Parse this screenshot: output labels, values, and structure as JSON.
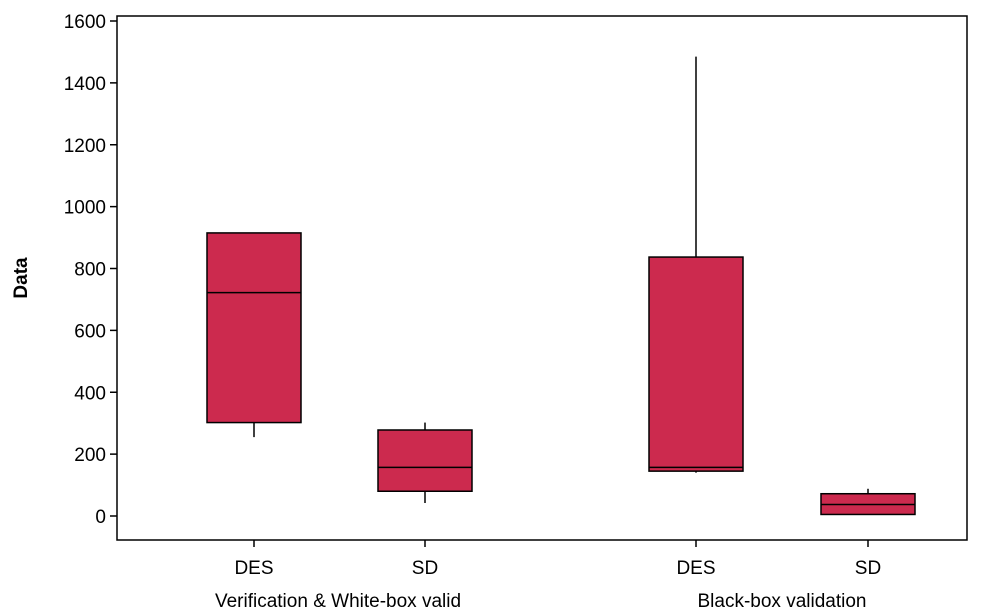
{
  "chart_data": {
    "type": "boxplot",
    "title": "",
    "xlabel": "",
    "ylabel": "Data",
    "ylim": [
      -80,
      1600
    ],
    "yticks": [
      0,
      200,
      400,
      600,
      800,
      1000,
      1200,
      1400,
      1600
    ],
    "grid": false,
    "box_color": "#cc2a4e",
    "stroke_color": "#000000",
    "groups": [
      {
        "label": "Verification & White-box valid",
        "boxes": [
          {
            "category": "DES",
            "min": 255,
            "q1": 302,
            "median": 722,
            "q3": 915,
            "max": 915
          },
          {
            "category": "SD",
            "min": 42,
            "q1": 80,
            "median": 157,
            "q3": 278,
            "max": 302
          }
        ]
      },
      {
        "label": "Black-box validation",
        "boxes": [
          {
            "category": "DES",
            "min": 140,
            "q1": 145,
            "median": 157,
            "q3": 837,
            "max": 1485
          },
          {
            "category": "SD",
            "min": 5,
            "q1": 5,
            "median": 37,
            "q3": 72,
            "max": 88
          }
        ]
      }
    ]
  }
}
